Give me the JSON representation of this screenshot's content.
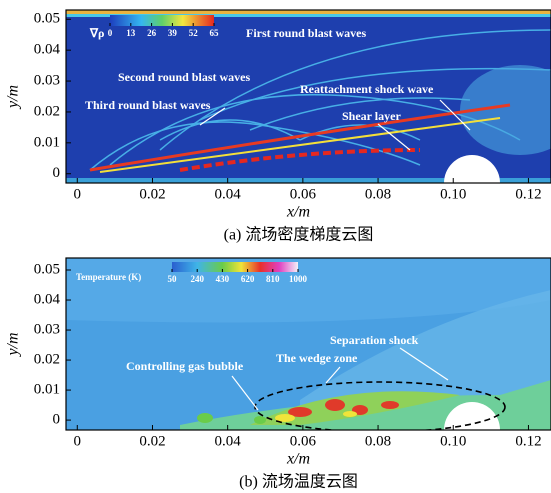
{
  "chart_data": [
    {
      "type": "contour",
      "caption": "(a) 流场密度梯度云图",
      "xlabel": "x/m",
      "ylabel": "y/m",
      "xlim": [
        -0.003,
        0.126
      ],
      "ylim": [
        -0.003,
        0.053
      ],
      "xticks": [
        0,
        0.02,
        0.04,
        0.06,
        0.08,
        {
          "value": 0.1,
          "label": "0.10"
        },
        0.12
      ],
      "yticks": [
        0,
        0.01,
        0.02,
        0.03,
        0.04,
        0.05
      ],
      "colorbar": {
        "label": "∇ρ",
        "ticks": [
          0,
          13,
          26,
          39,
          52,
          65
        ]
      },
      "annotations": [
        "First round blast waves",
        "Second round blast waves",
        "Third round blast waves",
        "Reattachment shock wave",
        "Shear layer"
      ]
    },
    {
      "type": "contour",
      "caption": "(b) 流场温度云图",
      "xlabel": "x/m",
      "ylabel": "y/m",
      "xlim": [
        -0.003,
        0.126
      ],
      "ylim": [
        -0.0033,
        0.054
      ],
      "xticks": [
        0,
        0.02,
        0.04,
        0.06,
        0.08,
        {
          "value": 0.1,
          "label": "0.10"
        },
        0.12
      ],
      "yticks": [
        0,
        0.01,
        0.02,
        0.03,
        0.04,
        0.05
      ],
      "colorbar": {
        "label": "Temperature (K)",
        "ticks": [
          50,
          240,
          430,
          620,
          810,
          1000
        ]
      },
      "annotations": [
        "Separation shock",
        "The wedge zone",
        "Controlling gas bubble"
      ]
    }
  ]
}
